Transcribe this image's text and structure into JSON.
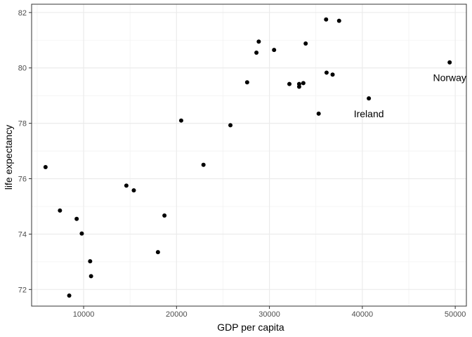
{
  "chart_data": {
    "type": "scatter",
    "xlabel": "GDP per capita",
    "ylabel": "life expectancy",
    "xlim": [
      4400,
      51200
    ],
    "ylim": [
      71.4,
      82.3
    ],
    "x_ticks": [
      10000,
      20000,
      30000,
      40000,
      50000
    ],
    "x_tick_labels": [
      "10000",
      "20000",
      "30000",
      "40000",
      "50000"
    ],
    "y_ticks": [
      72,
      74,
      76,
      78,
      80,
      82
    ],
    "y_tick_labels": [
      "72",
      "74",
      "76",
      "78",
      "80",
      "82"
    ],
    "x_minor": [
      5000,
      15000,
      25000,
      35000,
      45000
    ],
    "y_minor": [
      73,
      75,
      77,
      79,
      81
    ],
    "grid": true,
    "points": [
      {
        "x": 5900,
        "y": 76.42
      },
      {
        "x": 7450,
        "y": 74.85
      },
      {
        "x": 8450,
        "y": 71.78
      },
      {
        "x": 9250,
        "y": 74.55
      },
      {
        "x": 9800,
        "y": 74.02
      },
      {
        "x": 10700,
        "y": 73.02
      },
      {
        "x": 10800,
        "y": 72.48
      },
      {
        "x": 14600,
        "y": 75.75
      },
      {
        "x": 15400,
        "y": 75.58
      },
      {
        "x": 18000,
        "y": 73.35
      },
      {
        "x": 18700,
        "y": 74.67
      },
      {
        "x": 20500,
        "y": 78.1
      },
      {
        "x": 22900,
        "y": 76.5
      },
      {
        "x": 25800,
        "y": 77.93
      },
      {
        "x": 27600,
        "y": 79.48
      },
      {
        "x": 28600,
        "y": 80.55
      },
      {
        "x": 28850,
        "y": 80.95
      },
      {
        "x": 30500,
        "y": 80.65
      },
      {
        "x": 32150,
        "y": 79.42
      },
      {
        "x": 33200,
        "y": 79.42
      },
      {
        "x": 33200,
        "y": 79.32
      },
      {
        "x": 33650,
        "y": 79.45
      },
      {
        "x": 33900,
        "y": 80.88
      },
      {
        "x": 35300,
        "y": 78.35
      },
      {
        "x": 36100,
        "y": 81.75
      },
      {
        "x": 36150,
        "y": 79.83
      },
      {
        "x": 36800,
        "y": 79.76
      },
      {
        "x": 37500,
        "y": 81.7
      },
      {
        "x": 40700,
        "y": 78.9
      },
      {
        "x": 49400,
        "y": 80.2
      }
    ],
    "annotations": [
      {
        "label": "Norway",
        "x": 49400,
        "y": 79.65,
        "anchor": "middle"
      },
      {
        "label": "Ireland",
        "x": 40700,
        "y": 78.35,
        "anchor": "middle"
      }
    ]
  }
}
